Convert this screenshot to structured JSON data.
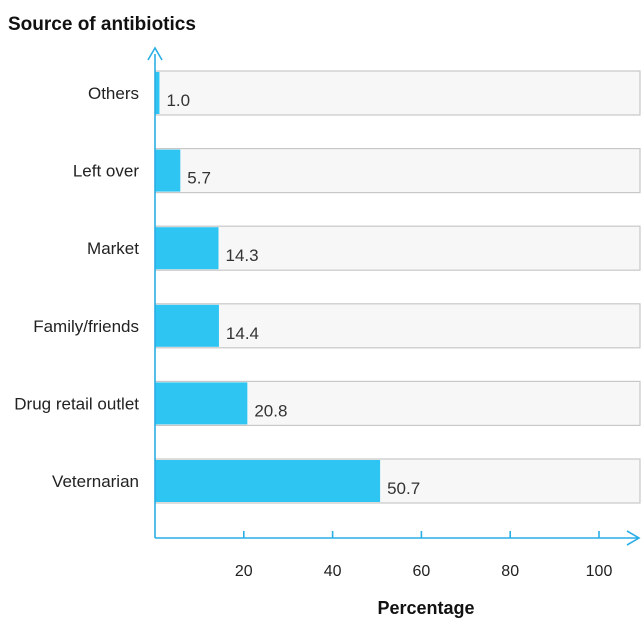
{
  "chart_data": {
    "type": "bar",
    "orientation": "horizontal",
    "title": "Source of antibiotics",
    "xlabel": "Percentage",
    "ylabel": "",
    "categories": [
      "Others",
      "Left over",
      "Market",
      "Family/friends",
      "Drug retail outlet",
      "Veternarian"
    ],
    "values": [
      1.0,
      5.7,
      14.3,
      14.4,
      20.8,
      50.7
    ],
    "value_labels": [
      "1.0",
      "5.7",
      "14.3",
      "14.4",
      "20.8",
      "50.7"
    ],
    "xlim": [
      0,
      110
    ],
    "xticks": [
      20,
      40,
      60,
      80,
      100
    ],
    "xtick_labels": [
      "20",
      "40",
      "60",
      "80",
      "100"
    ],
    "background_track": true,
    "grid": false,
    "legend": "none"
  },
  "colors": {
    "bar": "#2ec5f2",
    "track_fill": "#f7f7f7",
    "track_stroke": "#c8c8c8",
    "axis": "#2aaee6"
  }
}
